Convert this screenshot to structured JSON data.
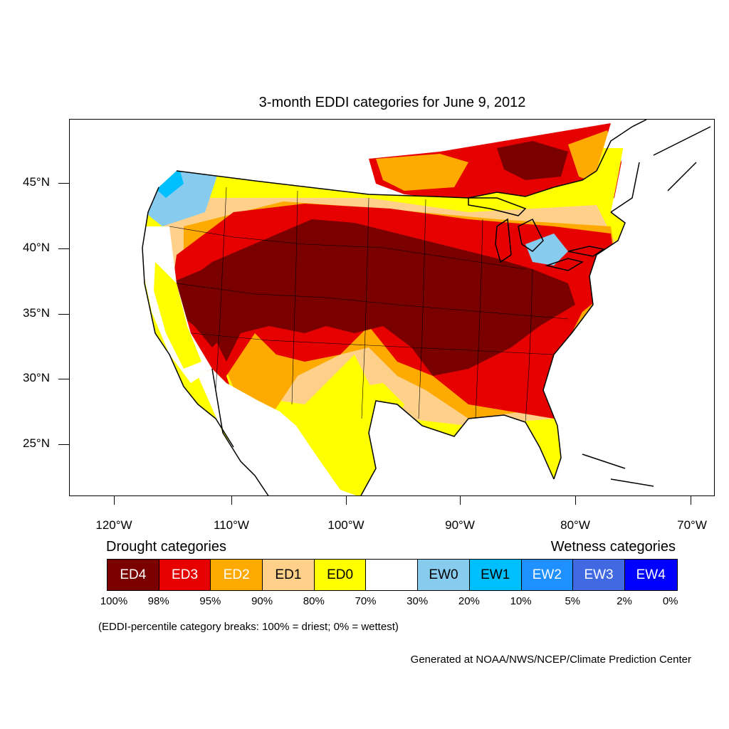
{
  "title": "3-month EDDI categories for June 9, 2012",
  "map": {
    "projection": "lambert-conformal",
    "region": "Contiguous United States",
    "lat_ticks": [
      "45°N",
      "40°N",
      "35°N",
      "30°N",
      "25°N"
    ],
    "lon_ticks": [
      "120°W",
      "110°W",
      "100°W",
      "90°W",
      "80°W",
      "70°W"
    ],
    "dominant_category": "ED4",
    "colors": {
      "ED4": "#7a0000",
      "ED3": "#e60000",
      "ED2": "#ffaa00",
      "ED1": "#fed08a",
      "ED0": "#ffff00",
      "Neutral": "#ffffff",
      "EW0": "#87ccee",
      "EW1": "#00bfff",
      "EW2": "#1e90ff",
      "EW3": "#4169e1",
      "EW4": "#0000ff"
    }
  },
  "legend": {
    "drought_heading": "Drought categories",
    "wetness_heading": "Wetness categories",
    "categories": [
      {
        "label": "ED4",
        "color": "#7a0000",
        "text_color": "#ffffff"
      },
      {
        "label": "ED3",
        "color": "#e60000",
        "text_color": "#ffffff"
      },
      {
        "label": "ED2",
        "color": "#ffaa00",
        "text_color": "#ffffff"
      },
      {
        "label": "ED1",
        "color": "#fed08a",
        "text_color": "#000000"
      },
      {
        "label": "ED0",
        "color": "#ffff00",
        "text_color": "#000000"
      },
      {
        "label": "",
        "color": "#ffffff",
        "text_color": "#000000"
      },
      {
        "label": "EW0",
        "color": "#87ccee",
        "text_color": "#000000"
      },
      {
        "label": "EW1",
        "color": "#00bfff",
        "text_color": "#000000"
      },
      {
        "label": "EW2",
        "color": "#1e90ff",
        "text_color": "#ffffff"
      },
      {
        "label": "EW3",
        "color": "#4169e1",
        "text_color": "#ffffff"
      },
      {
        "label": "EW4",
        "color": "#0000ff",
        "text_color": "#ffffff"
      }
    ],
    "breaks": [
      "100%",
      "98%",
      "95%",
      "90%",
      "80%",
      "70%",
      "30%",
      "20%",
      "10%",
      "5%",
      "2%",
      "0%"
    ]
  },
  "note": "(EDDI-percentile category breaks: 100% = driest; 0% = wettest)",
  "credit": "Generated at NOAA/NWS/NCEP/Climate Prediction Center"
}
